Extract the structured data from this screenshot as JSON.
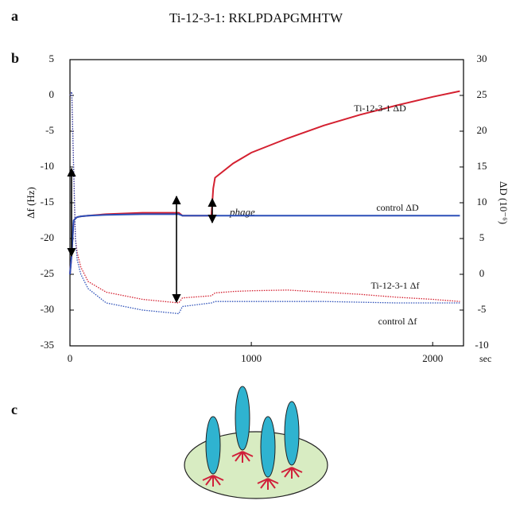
{
  "panels": [
    "a",
    "b",
    "c"
  ],
  "chart_data": {
    "type": "line",
    "title": "Ti-12-3-1: RKLPDAPGMHTW",
    "x_label": "sec",
    "y_label": "Δf (Hz)",
    "y2_label": "ΔD (10⁻⁶)",
    "annotation": "phage",
    "x": [
      0,
      10,
      20,
      30,
      40,
      60,
      100,
      200,
      400,
      600,
      620,
      780,
      790,
      800,
      900,
      1000,
      1200,
      1400,
      1600,
      1800,
      2000,
      2150
    ],
    "xlim": [
      0,
      2170
    ],
    "xticks": [
      0,
      1000,
      2000
    ],
    "ylim": [
      -35,
      5
    ],
    "yticks": [
      -35,
      -30,
      -25,
      -20,
      -15,
      -10,
      -5,
      0,
      5
    ],
    "y2lim": [
      -10,
      30
    ],
    "y2ticks": [
      -10,
      -5,
      0,
      5,
      10,
      15,
      20,
      25,
      30
    ],
    "grid": false,
    "series": [
      {
        "name": "Ti-12-3-1 ΔD",
        "color": "#d42030",
        "style": "solid",
        "axis": "y2",
        "values": [
          0,
          3,
          7.5,
          7.8,
          8,
          8.1,
          8.2,
          8.4,
          8.6,
          8.6,
          8.2,
          8.2,
          12,
          13.5,
          15.5,
          17,
          19,
          20.8,
          22.3,
          23.6,
          24.8,
          25.6
        ]
      },
      {
        "name": "control ΔD",
        "color": "#2b4fb8",
        "style": "solid",
        "axis": "y2",
        "values": [
          0,
          3,
          7.5,
          7.8,
          8,
          8.1,
          8.2,
          8.3,
          8.4,
          8.4,
          8.2,
          8.2,
          8.2,
          8.2,
          8.2,
          8.2,
          8.2,
          8.2,
          8.2,
          8.2,
          8.2,
          8.2
        ]
      },
      {
        "name": "Ti-12-3-1 Δf",
        "color": "#d42030",
        "style": "dotted",
        "values": [
          0,
          0.5,
          -10,
          -20,
          -22,
          -24,
          -26,
          -27.5,
          -28.5,
          -29,
          -28.3,
          -28,
          -27.8,
          -27.6,
          -27.4,
          -27.3,
          -27.2,
          -27.5,
          -27.8,
          -28.2,
          -28.5,
          -28.8
        ]
      },
      {
        "name": "control Δf",
        "color": "#2b4fb8",
        "style": "dotted",
        "values": [
          0,
          0.5,
          -10,
          -20,
          -23,
          -25,
          -27,
          -29,
          -30,
          -30.5,
          -29.5,
          -29,
          -28.9,
          -28.8,
          -28.8,
          -28.8,
          -28.8,
          -28.8,
          -28.9,
          -29,
          -29,
          -29
        ]
      }
    ]
  }
}
